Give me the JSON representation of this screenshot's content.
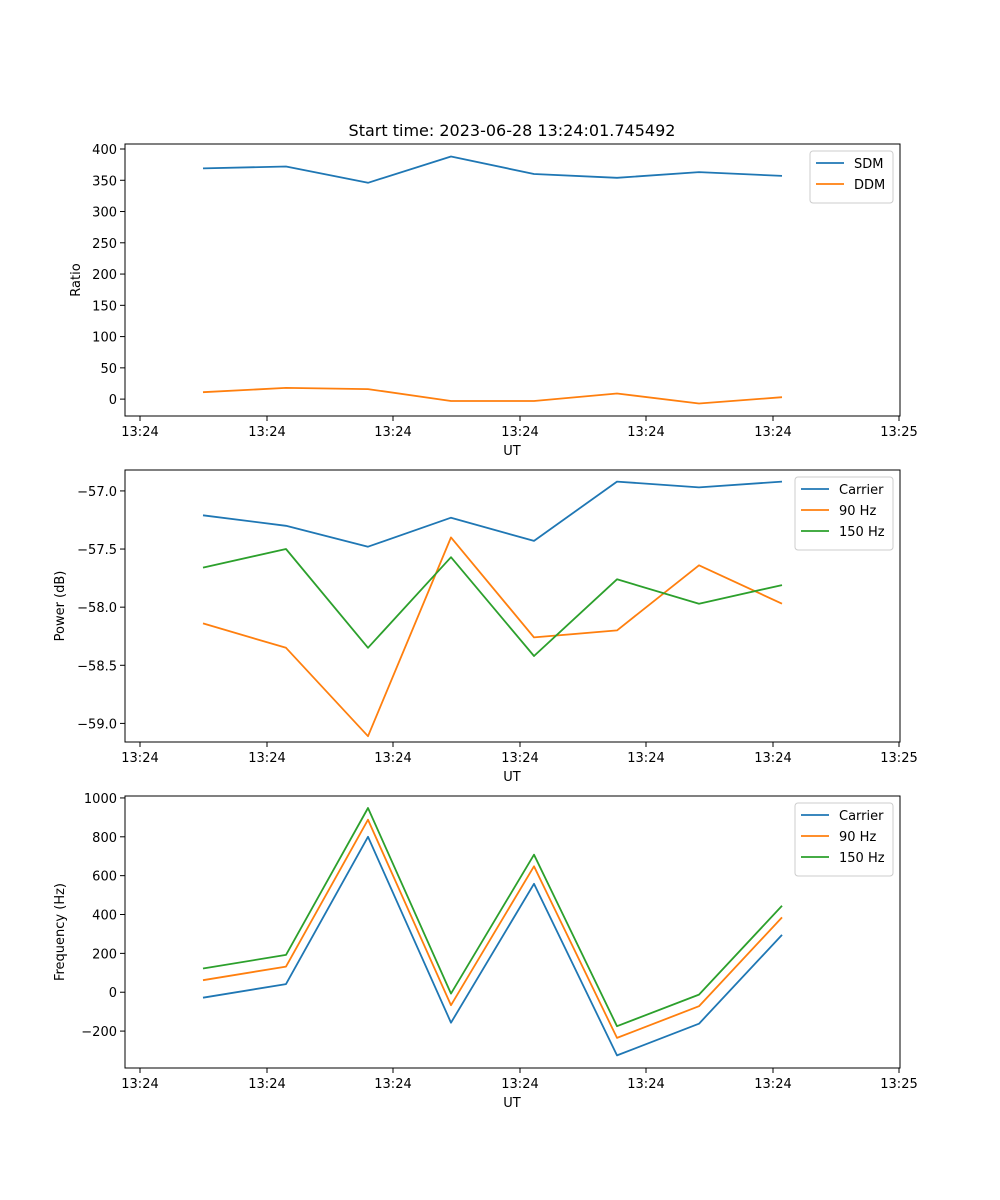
{
  "title": "Start time: 2023-06-28 13:24:01.745492",
  "colors": {
    "blue": "#1f77b4",
    "orange": "#ff7f0e",
    "green": "#2ca02c"
  },
  "chart_data": [
    {
      "type": "line",
      "xlabel": "UT",
      "ylabel": "Ratio",
      "xticks": [
        "13:24",
        "13:24",
        "13:24",
        "13:24",
        "13:24",
        "13:24",
        "13:24",
        "13:25"
      ],
      "yticks": [
        0,
        50,
        100,
        150,
        200,
        250,
        300,
        350,
        400
      ],
      "ylim": [
        -27,
        408
      ],
      "legend_position": "top-right",
      "grid": false,
      "series": [
        {
          "name": "SDM",
          "color": "#1f77b4",
          "values": [
            369,
            372,
            346,
            388,
            360,
            354,
            363,
            357
          ]
        },
        {
          "name": "DDM",
          "color": "#ff7f0e",
          "values": [
            11,
            18,
            16,
            -3,
            -3,
            9,
            -7,
            3
          ]
        }
      ]
    },
    {
      "type": "line",
      "xlabel": "UT",
      "ylabel": "Power (dB)",
      "xticks": [
        "13:24",
        "13:24",
        "13:24",
        "13:24",
        "13:24",
        "13:24",
        "13:24",
        "13:25"
      ],
      "yticks": [
        "−59.0",
        "−58.5",
        "−58.0",
        "−57.5",
        "−57.0"
      ],
      "ytick_values": [
        -59.0,
        -58.5,
        -58.0,
        -57.5,
        -57.0
      ],
      "ylim": [
        -59.16,
        -56.82
      ],
      "legend_position": "top-right",
      "grid": false,
      "series": [
        {
          "name": "Carrier",
          "color": "#1f77b4",
          "values": [
            -57.21,
            -57.3,
            -57.48,
            -57.23,
            -57.43,
            -56.92,
            -56.97,
            -56.92
          ]
        },
        {
          "name": "90 Hz",
          "color": "#ff7f0e",
          "values": [
            -58.14,
            -58.35,
            -59.11,
            -57.4,
            -58.26,
            -58.2,
            -57.64,
            -57.97
          ]
        },
        {
          "name": "150 Hz",
          "color": "#2ca02c",
          "values": [
            -57.66,
            -57.5,
            -58.35,
            -57.57,
            -58.42,
            -57.76,
            -57.97,
            -57.81
          ]
        }
      ]
    },
    {
      "type": "line",
      "xlabel": "UT",
      "ylabel": "Frequency (Hz)",
      "xticks": [
        "13:24",
        "13:24",
        "13:24",
        "13:24",
        "13:24",
        "13:24",
        "13:24",
        "13:25"
      ],
      "yticks": [
        "−200",
        "0",
        "200",
        "400",
        "600",
        "800",
        "1000"
      ],
      "ytick_values": [
        -200,
        0,
        200,
        400,
        600,
        800,
        1000
      ],
      "ylim": [
        -390,
        1010
      ],
      "legend_position": "top-right",
      "grid": false,
      "series": [
        {
          "name": "Carrier",
          "color": "#1f77b4",
          "values": [
            -28,
            42,
            800,
            -157,
            558,
            -325,
            -162,
            295
          ]
        },
        {
          "name": "90 Hz",
          "color": "#ff7f0e",
          "values": [
            62,
            132,
            888,
            -67,
            648,
            -235,
            -72,
            385
          ]
        },
        {
          "name": "150 Hz",
          "color": "#2ca02c",
          "values": [
            122,
            192,
            948,
            -7,
            708,
            -175,
            -12,
            445
          ]
        }
      ]
    }
  ]
}
